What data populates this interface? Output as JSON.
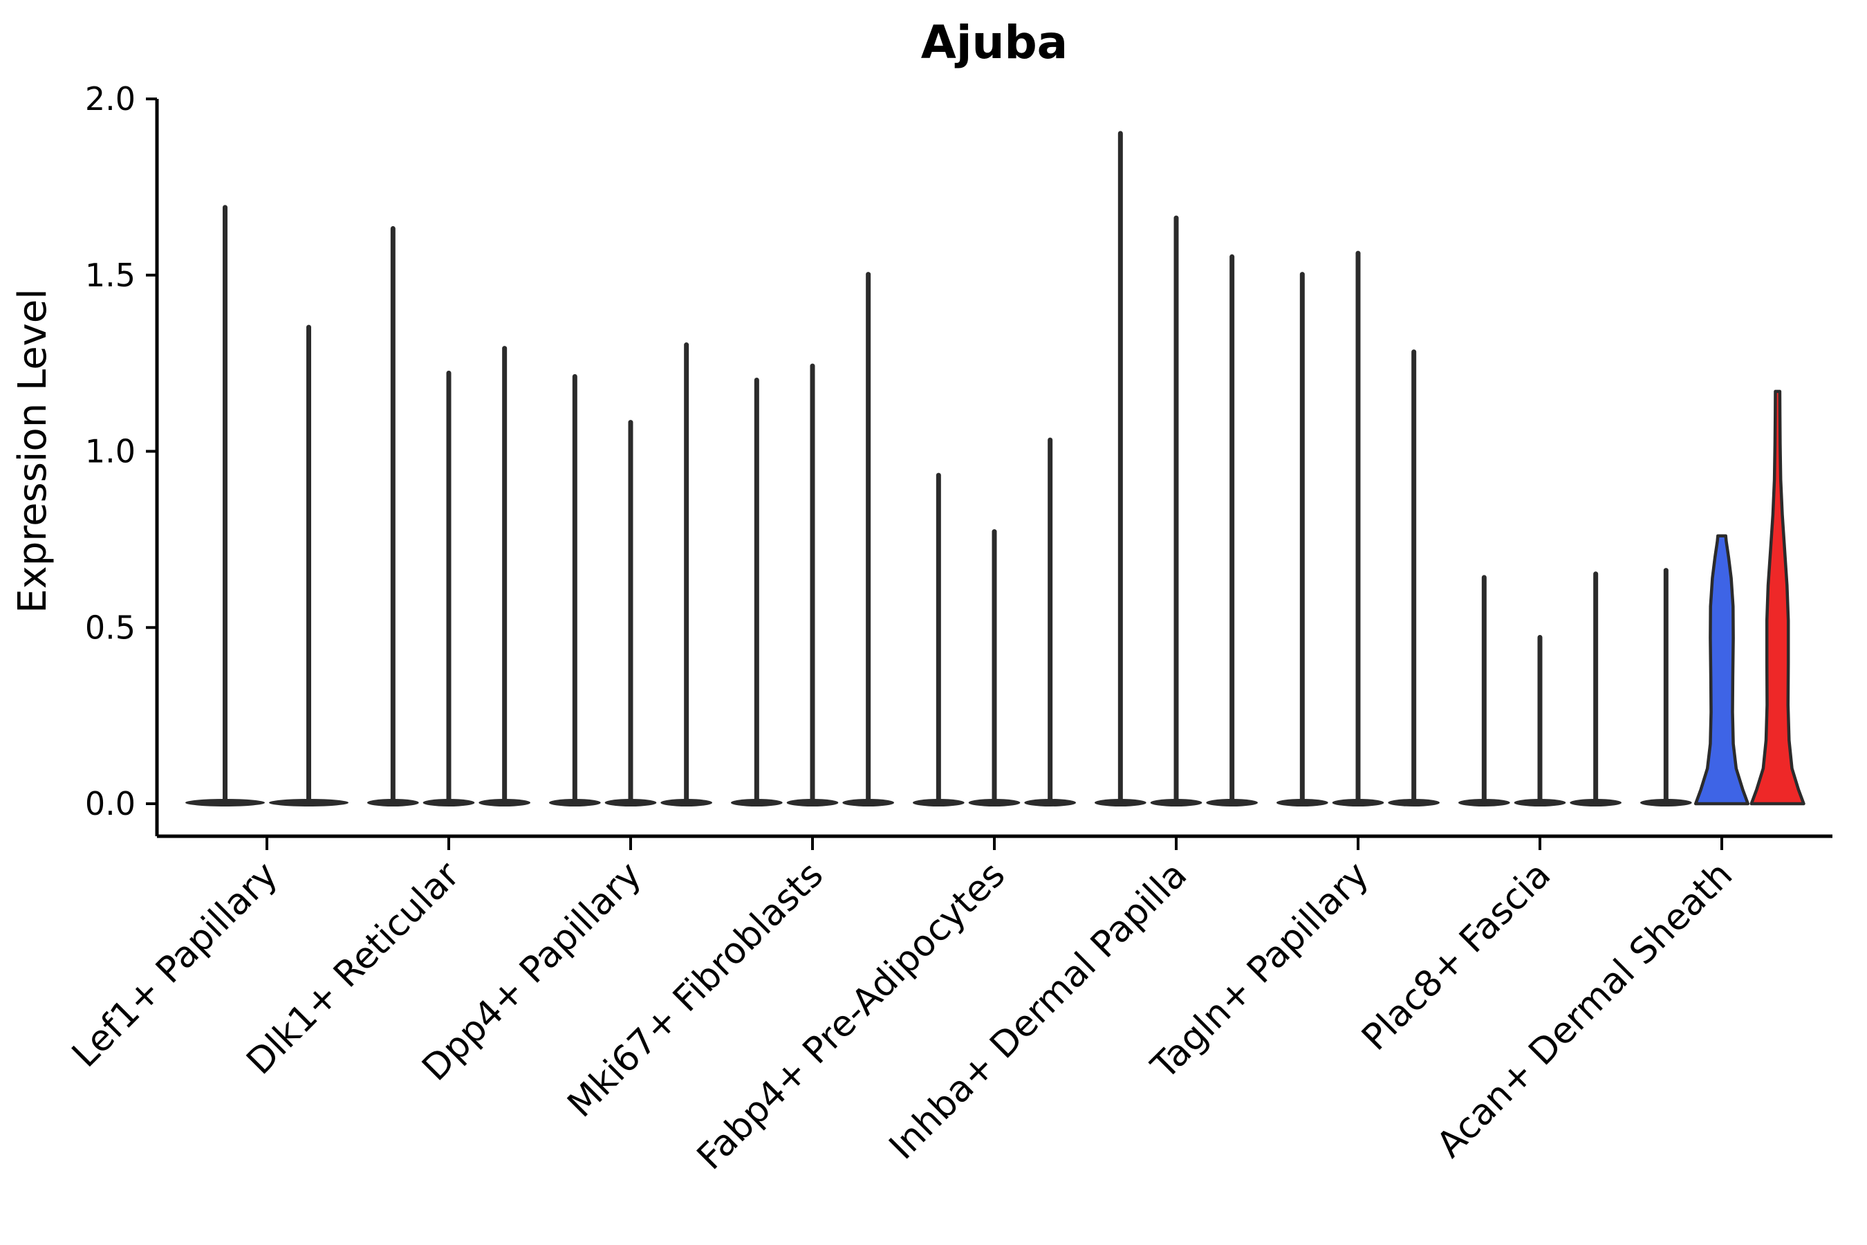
{
  "title": "Ajuba",
  "y_axis": {
    "label": "Expression Level",
    "ticks": [
      "0.0",
      "0.5",
      "1.0",
      "1.5",
      "2.0"
    ],
    "tick_values": [
      0.0,
      0.5,
      1.0,
      1.5,
      2.0
    ]
  },
  "chart_data": {
    "type": "violin",
    "title": "Ajuba",
    "ylabel": "Expression Level",
    "ylim": [
      0.0,
      2.0
    ],
    "y_ticks": [
      0.0,
      0.5,
      1.0,
      1.5,
      2.0
    ],
    "grid": false,
    "legend": false,
    "categories": [
      "Lef1+ Papillary",
      "Dlk1+ Reticular",
      "Dpp4+ Papillary",
      "Mki67+ Fibroblasts",
      "Fabp4+ Pre-Adipocytes",
      "Inhba+ Dermal Papilla",
      "Tagln+ Papillary",
      "Plac8+ Fascia",
      "Acan+ Dermal Sheath"
    ],
    "description": "Violin plot of Ajuba expression; most violins collapse to a flat base at 0 with a thin spike to the max expression value. The last category has a blue and a red filled violin.",
    "groups": [
      {
        "category": "Lef1+ Papillary",
        "violins": [
          {
            "style": "spike",
            "max": 1.7
          },
          {
            "style": "spike",
            "max": 1.36
          }
        ]
      },
      {
        "category": "Dlk1+ Reticular",
        "violins": [
          {
            "style": "spike",
            "max": 1.64
          },
          {
            "style": "spike",
            "max": 1.23
          },
          {
            "style": "spike",
            "max": 1.3
          }
        ]
      },
      {
        "category": "Dpp4+ Papillary",
        "violins": [
          {
            "style": "spike",
            "max": 1.22
          },
          {
            "style": "spike",
            "max": 1.09
          },
          {
            "style": "spike",
            "max": 1.31
          }
        ]
      },
      {
        "category": "Mki67+ Fibroblasts",
        "violins": [
          {
            "style": "spike",
            "max": 1.21
          },
          {
            "style": "spike",
            "max": 1.25
          },
          {
            "style": "spike",
            "max": 1.51
          }
        ]
      },
      {
        "category": "Fabp4+ Pre-Adipocytes",
        "violins": [
          {
            "style": "spike",
            "max": 0.94
          },
          {
            "style": "spike",
            "max": 0.78
          },
          {
            "style": "spike",
            "max": 1.04
          }
        ]
      },
      {
        "category": "Inhba+ Dermal Papilla",
        "violins": [
          {
            "style": "spike",
            "max": 1.91
          },
          {
            "style": "spike",
            "max": 1.67
          },
          {
            "style": "spike",
            "max": 1.56
          }
        ]
      },
      {
        "category": "Tagln+ Papillary",
        "violins": [
          {
            "style": "spike",
            "max": 1.51
          },
          {
            "style": "spike",
            "max": 1.57
          },
          {
            "style": "spike",
            "max": 1.29
          }
        ]
      },
      {
        "category": "Plac8+ Fascia",
        "violins": [
          {
            "style": "spike",
            "max": 0.65
          },
          {
            "style": "spike",
            "max": 0.48
          },
          {
            "style": "spike",
            "max": 0.66
          }
        ]
      },
      {
        "category": "Acan+ Dermal Sheath",
        "violins": [
          {
            "style": "spike",
            "max": 0.67
          },
          {
            "style": "violin",
            "max": 0.76,
            "fill": "#3E64E6",
            "profile": [
              [
                0,
                1.0
              ],
              [
                0.04,
                0.8
              ],
              [
                0.1,
                0.55
              ],
              [
                0.17,
                0.44
              ],
              [
                0.26,
                0.41
              ],
              [
                0.36,
                0.42
              ],
              [
                0.47,
                0.44
              ],
              [
                0.56,
                0.43
              ],
              [
                0.64,
                0.36
              ],
              [
                0.7,
                0.26
              ],
              [
                0.745,
                0.17
              ],
              [
                0.76,
                0.15
              ]
            ]
          },
          {
            "style": "violin",
            "max": 1.17,
            "fill": "#EE2828",
            "profile": [
              [
                0,
                1.0
              ],
              [
                0.04,
                0.8
              ],
              [
                0.1,
                0.55
              ],
              [
                0.18,
                0.44
              ],
              [
                0.28,
                0.4
              ],
              [
                0.4,
                0.41
              ],
              [
                0.52,
                0.41
              ],
              [
                0.62,
                0.36
              ],
              [
                0.72,
                0.27
              ],
              [
                0.82,
                0.18
              ],
              [
                0.92,
                0.12
              ],
              [
                1.02,
                0.1
              ],
              [
                1.1,
                0.09
              ],
              [
                1.17,
                0.085
              ]
            ]
          }
        ]
      }
    ],
    "colors": {
      "spike": "#2b2b2b",
      "outline": "#2b2b2b",
      "blue": "#3E64E6",
      "red": "#EE2828"
    }
  }
}
